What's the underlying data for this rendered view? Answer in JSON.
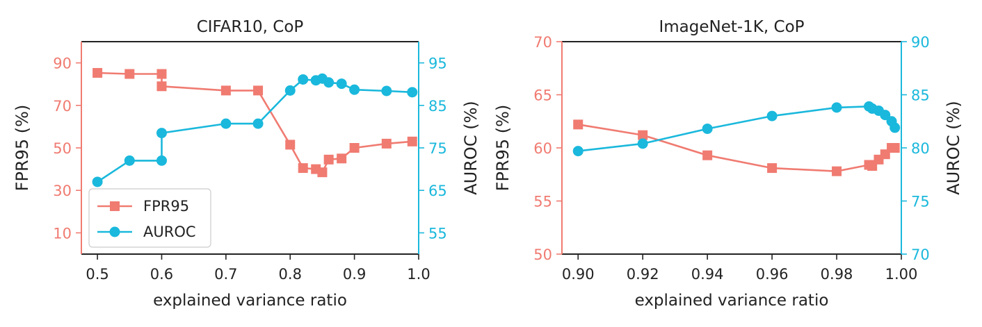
{
  "colors": {
    "fpr": "#f07b71",
    "auroc": "#1ab8dc",
    "axis": "#222222",
    "text": "#222222"
  },
  "chart_data": [
    {
      "type": "line",
      "title": "CIFAR10, CoP",
      "xlabel": "explained variance ratio",
      "ylabel_left": "FPR95 (%)",
      "ylabel_right": "AUROC (%)",
      "xlim": [
        0.475,
        1.0
      ],
      "ylim_left": [
        0,
        100
      ],
      "ylim_right": [
        50,
        100
      ],
      "xticks": [
        0.5,
        0.6,
        0.7,
        0.8,
        0.9,
        1.0
      ],
      "xtick_labels": [
        "0.5",
        "0.6",
        "0.7",
        "0.8",
        "0.9",
        "1.0"
      ],
      "yticks_left": [
        10,
        30,
        50,
        70,
        90
      ],
      "ytick_labels_left": [
        "10",
        "30",
        "50",
        "70",
        "90"
      ],
      "yticks_right": [
        55,
        65,
        75,
        85,
        95
      ],
      "ytick_labels_right": [
        "55",
        "65",
        "75",
        "85",
        "95"
      ],
      "legend": {
        "position": "lower-left",
        "entries": [
          "FPR95",
          "AUROC"
        ]
      },
      "series": [
        {
          "name": "FPR95",
          "axis": "left",
          "marker": "square",
          "color_key": "fpr",
          "x": [
            0.5,
            0.55,
            0.6,
            0.6,
            0.7,
            0.75,
            0.8,
            0.82,
            0.84,
            0.85,
            0.86,
            0.88,
            0.9,
            0.95,
            0.99
          ],
          "y": [
            85.3,
            84.8,
            84.8,
            79.0,
            77.0,
            77.0,
            51.5,
            40.5,
            40.0,
            38.5,
            44.5,
            45.0,
            50.0,
            52.0,
            53.0
          ]
        },
        {
          "name": "AUROC",
          "axis": "right",
          "marker": "circle",
          "color_key": "auroc",
          "x": [
            0.5,
            0.55,
            0.6,
            0.6,
            0.7,
            0.75,
            0.8,
            0.82,
            0.84,
            0.85,
            0.86,
            0.88,
            0.9,
            0.95,
            0.99
          ],
          "y": [
            67.0,
            72.0,
            72.0,
            78.5,
            80.7,
            80.7,
            88.5,
            91.1,
            90.9,
            91.3,
            90.4,
            90.1,
            88.7,
            88.4,
            88.1
          ]
        }
      ]
    },
    {
      "type": "line",
      "title": "ImageNet-1K, CoP",
      "xlabel": "explained variance ratio",
      "ylabel_left": "FPR95 (%)",
      "ylabel_right": "AUROC (%)",
      "xlim": [
        0.895,
        1.0
      ],
      "ylim_left": [
        50,
        70
      ],
      "ylim_right": [
        70,
        90
      ],
      "xticks": [
        0.9,
        0.92,
        0.94,
        0.96,
        0.98,
        1.0
      ],
      "xtick_labels": [
        "0.90",
        "0.92",
        "0.94",
        "0.96",
        "0.98",
        "1.00"
      ],
      "yticks_left": [
        50,
        55,
        60,
        65,
        70
      ],
      "ytick_labels_left": [
        "50",
        "55",
        "60",
        "65",
        "70"
      ],
      "yticks_right": [
        70,
        75,
        80,
        85,
        90
      ],
      "ytick_labels_right": [
        "70",
        "75",
        "80",
        "85",
        "90"
      ],
      "series": [
        {
          "name": "FPR95",
          "axis": "left",
          "marker": "square",
          "color_key": "fpr",
          "x": [
            0.9,
            0.92,
            0.94,
            0.96,
            0.98,
            0.99,
            0.991,
            0.993,
            0.995,
            0.997,
            0.998
          ],
          "y": [
            62.2,
            61.2,
            59.3,
            58.1,
            57.8,
            58.4,
            58.3,
            58.9,
            59.4,
            60.0,
            60.0
          ]
        },
        {
          "name": "AUROC",
          "axis": "right",
          "marker": "circle",
          "color_key": "auroc",
          "x": [
            0.9,
            0.92,
            0.94,
            0.96,
            0.98,
            0.99,
            0.991,
            0.993,
            0.995,
            0.997,
            0.998
          ],
          "y": [
            79.7,
            80.4,
            81.8,
            83.0,
            83.8,
            83.9,
            83.7,
            83.5,
            83.1,
            82.5,
            81.9
          ]
        }
      ]
    }
  ]
}
